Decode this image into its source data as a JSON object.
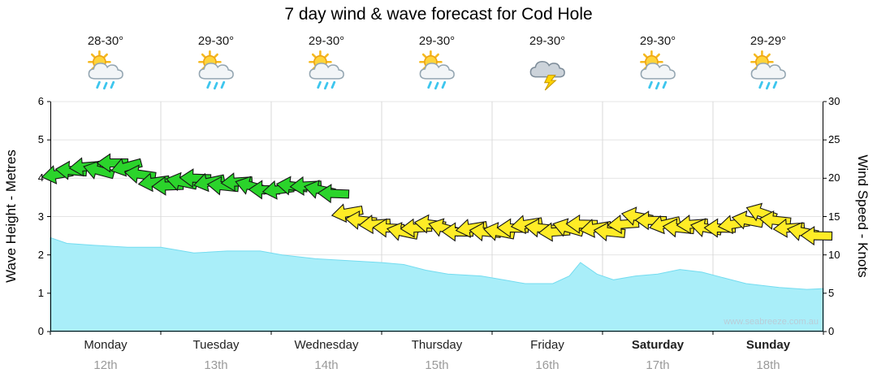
{
  "title": "7 day wind & wave forecast for Cod Hole",
  "watermark": "www.seabreeze.com.au",
  "days": [
    {
      "name": "Monday",
      "date": "12th",
      "temp": "28-30°",
      "icon": "sun-cloud-showers",
      "bold": false
    },
    {
      "name": "Tuesday",
      "date": "13th",
      "temp": "29-30°",
      "icon": "sun-cloud-showers",
      "bold": false
    },
    {
      "name": "Wednesday",
      "date": "14th",
      "temp": "29-30°",
      "icon": "sun-cloud-showers",
      "bold": false
    },
    {
      "name": "Thursday",
      "date": "15th",
      "temp": "29-30°",
      "icon": "sun-cloud-showers",
      "bold": false
    },
    {
      "name": "Friday",
      "date": "16th",
      "temp": "29-30°",
      "icon": "storm",
      "bold": false
    },
    {
      "name": "Saturday",
      "date": "17th",
      "temp": "29-30°",
      "icon": "sun-cloud-showers",
      "bold": true
    },
    {
      "name": "Sunday",
      "date": "18th",
      "temp": "29-29°",
      "icon": "sun-cloud-showers",
      "bold": true
    }
  ],
  "chart_data": {
    "type": "area+wind-arrows",
    "title": "7 day wind & wave forecast for Cod Hole",
    "x_axis": {
      "unit": "days",
      "range": [
        0,
        7
      ],
      "categories": [
        "Monday 12th",
        "Tuesday 13th",
        "Wednesday 14th",
        "Thursday 15th",
        "Friday 16th",
        "Saturday 17th",
        "Sunday 18th"
      ],
      "grid": true
    },
    "y_left": {
      "label": "Wave Height - Metres",
      "min": 0,
      "max": 6,
      "ticks": [
        "6",
        "5",
        "4",
        "3",
        "2",
        "1",
        "0"
      ]
    },
    "y_right": {
      "label": "Wind Speed - Knots",
      "min": 0,
      "max": 30,
      "ticks": [
        "30",
        "25",
        "20",
        "15",
        "10",
        "5",
        "0"
      ]
    },
    "wave_series": {
      "name": "Wave Height (m)",
      "fill": "#a9eef9",
      "stroke": "#74dcf0",
      "t_days": [
        0,
        0.15,
        0.4,
        0.7,
        1.0,
        1.3,
        1.6,
        1.9,
        2.1,
        2.4,
        2.7,
        3.0,
        3.2,
        3.4,
        3.6,
        3.9,
        4.1,
        4.3,
        4.55,
        4.7,
        4.8,
        4.95,
        5.1,
        5.3,
        5.5,
        5.7,
        5.9,
        6.1,
        6.3,
        6.6,
        6.85,
        7.0
      ],
      "metres": [
        2.45,
        2.3,
        2.25,
        2.2,
        2.2,
        2.05,
        2.1,
        2.1,
        2.0,
        1.9,
        1.85,
        1.8,
        1.75,
        1.6,
        1.5,
        1.45,
        1.35,
        1.25,
        1.25,
        1.45,
        1.8,
        1.5,
        1.35,
        1.45,
        1.5,
        1.62,
        1.55,
        1.4,
        1.25,
        1.15,
        1.1,
        1.12
      ]
    },
    "wind_series": {
      "name": "Wind Speed (knots)",
      "green": "#2bd42b",
      "yellow": "#ffec26",
      "outline": "#151515",
      "green_min_knots": 16,
      "t_days": [
        0.0625,
        0.1875,
        0.3125,
        0.4375,
        0.5625,
        0.6875,
        0.8125,
        0.9375,
        1.0625,
        1.1875,
        1.3125,
        1.4375,
        1.5625,
        1.6875,
        1.8125,
        1.9375,
        2.0625,
        2.1875,
        2.3125,
        2.4375,
        2.5625,
        2.6875,
        2.8125,
        2.9375,
        3.0625,
        3.1875,
        3.3125,
        3.4375,
        3.5625,
        3.6875,
        3.8125,
        3.9375,
        4.0625,
        4.1875,
        4.3125,
        4.4375,
        4.5625,
        4.6875,
        4.8125,
        4.9375,
        5.0625,
        5.1875,
        5.3125,
        5.4375,
        5.5625,
        5.6875,
        5.8125,
        5.9375,
        6.0625,
        6.1875,
        6.3125,
        6.4375,
        6.5625,
        6.6875,
        6.8125,
        6.9375
      ],
      "knots": [
        20.5,
        21,
        21.5,
        21,
        22,
        21.5,
        20.5,
        19.5,
        19,
        19.5,
        20,
        19.5,
        19,
        19.5,
        19,
        18.5,
        18.5,
        19,
        19,
        18.5,
        18,
        15.5,
        14.5,
        14,
        13.5,
        13,
        13.5,
        14,
        13.5,
        13,
        13.5,
        13,
        13,
        13.5,
        14,
        13.5,
        13,
        13.5,
        14,
        13.5,
        13,
        14,
        15,
        14.5,
        14,
        13.5,
        14,
        13.5,
        13.5,
        14,
        14.5,
        15.5,
        14.5,
        13.5,
        13,
        12.5
      ],
      "arrow_dir_deg": [
        170,
        185,
        175,
        195,
        180,
        165,
        188,
        172,
        178,
        192,
        182,
        168,
        186,
        176,
        196,
        181,
        172,
        187,
        177,
        192,
        182,
        170,
        186,
        176,
        182,
        192,
        177,
        187,
        196,
        181,
        171,
        186,
        191,
        181,
        171,
        186,
        176,
        196,
        181,
        171,
        186,
        176,
        191,
        181,
        167,
        186,
        176,
        191,
        181,
        171,
        191,
        199,
        186,
        176,
        191,
        181
      ]
    }
  }
}
